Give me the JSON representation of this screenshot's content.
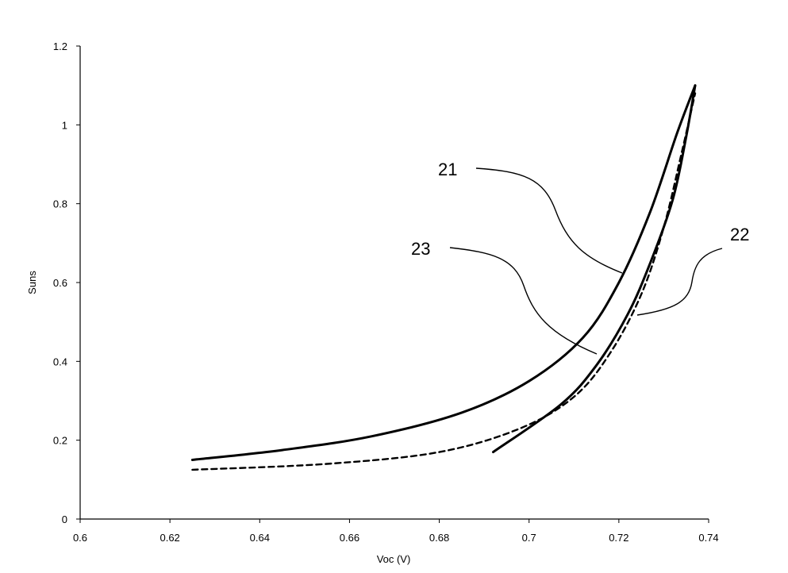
{
  "chart_data": {
    "type": "line",
    "xlabel": "Voc (V)",
    "ylabel": "Suns",
    "xlim": [
      0.6,
      0.74
    ],
    "ylim": [
      0,
      1.2
    ],
    "x_ticks": [
      "0.6",
      "0.62",
      "0.64",
      "0.66",
      "0.68",
      "0.7",
      "0.72",
      "0.74"
    ],
    "y_ticks": [
      "0",
      "0.2",
      "0.4",
      "0.6",
      "0.8",
      "1",
      "1.2"
    ],
    "grid": false,
    "legend": "none",
    "series": [
      {
        "label": "21",
        "line_style": "solid",
        "x": [
          0.625,
          0.645,
          0.665,
          0.685,
          0.7,
          0.712,
          0.72,
          0.727,
          0.733,
          0.737
        ],
        "y": [
          0.15,
          0.175,
          0.21,
          0.27,
          0.35,
          0.46,
          0.6,
          0.78,
          0.98,
          1.1
        ]
      },
      {
        "label": "22",
        "line_style": "solid",
        "x": [
          0.692,
          0.707,
          0.715,
          0.722,
          0.727,
          0.732,
          0.735,
          0.737
        ],
        "y": [
          0.17,
          0.29,
          0.39,
          0.52,
          0.65,
          0.81,
          0.97,
          1.1
        ]
      },
      {
        "label": "23",
        "line_style": "dashed",
        "x": [
          0.625,
          0.655,
          0.68,
          0.698,
          0.71,
          0.718,
          0.725,
          0.73,
          0.734,
          0.737
        ],
        "y": [
          0.125,
          0.14,
          0.17,
          0.23,
          0.31,
          0.42,
          0.57,
          0.74,
          0.93,
          1.08
        ]
      }
    ]
  }
}
